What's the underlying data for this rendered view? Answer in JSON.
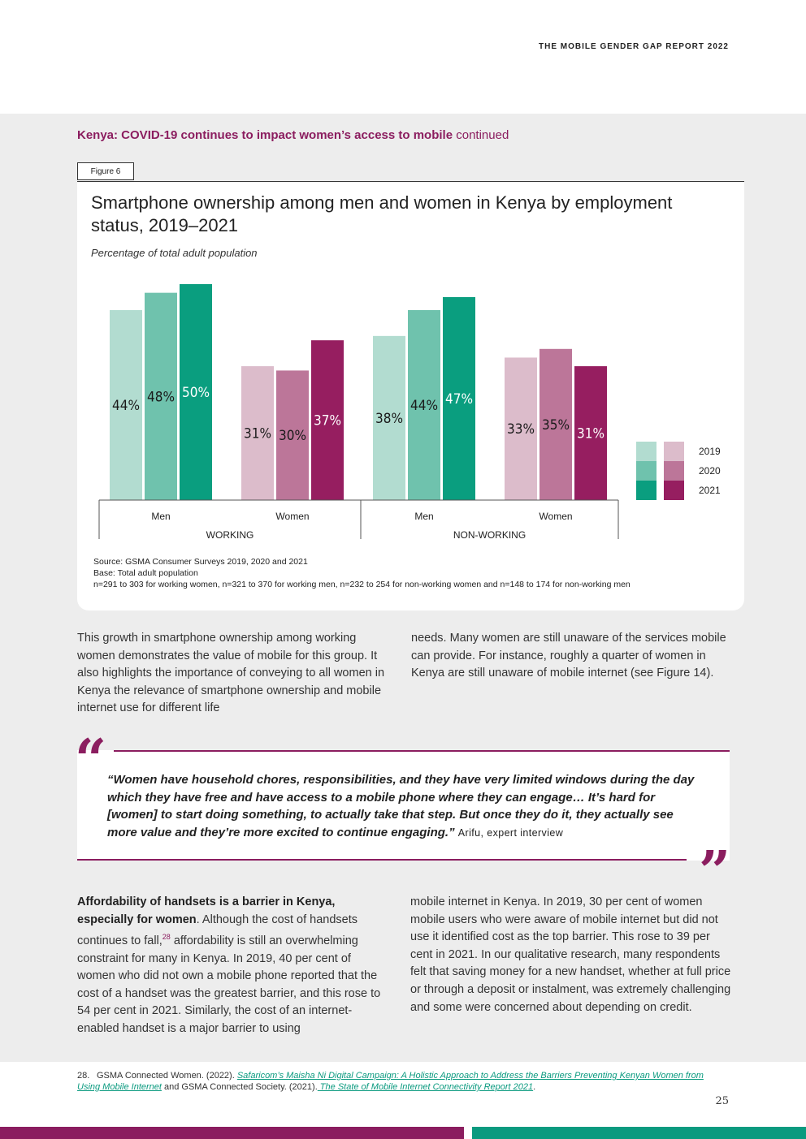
{
  "header": {
    "report_title": "THE MOBILE GENDER GAP REPORT 2022"
  },
  "section": {
    "title": "Kenya: COVID-19 continues to impact women’s access to mobile",
    "continued": "continued"
  },
  "figure": {
    "tab_label": "Figure 6",
    "subtitle": "Percentage of total adult population",
    "source_lines": [
      "Source: GSMA Consumer Surveys 2019, 2020 and 2021",
      "Base: Total adult population",
      "n=291 to 303 for working women, n=321 to 370 for working men, n=232 to 254 for non-working women and n=148 to 174 for non-working men"
    ]
  },
  "colors": {
    "men": [
      "#b2dcd0",
      "#6fc2ad",
      "#0a9e7f"
    ],
    "women": [
      "#dcbccb",
      "#bc7699",
      "#961e60"
    ],
    "brand_purple": "#8b1d5f",
    "brand_green": "#0a9a7f"
  },
  "chart_data": {
    "type": "bar",
    "title": "Smartphone ownership among men and women in Kenya by employment status, 2019–2021",
    "ylabel": "Percentage of total adult population",
    "ylim": [
      0,
      50
    ],
    "legend": [
      "2019",
      "2020",
      "2021"
    ],
    "legend_position": "right",
    "groups": [
      {
        "status": "WORKING",
        "categories": [
          {
            "name": "Men",
            "gender": "men",
            "values": [
              44,
              48,
              50
            ],
            "labels": [
              "44%",
              "48%",
              "50%"
            ]
          },
          {
            "name": "Women",
            "gender": "women",
            "values": [
              31,
              30,
              37
            ],
            "labels": [
              "31%",
              "30%",
              "37%"
            ]
          }
        ]
      },
      {
        "status": "NON-WORKING",
        "categories": [
          {
            "name": "Men",
            "gender": "men",
            "values": [
              38,
              44,
              47
            ],
            "labels": [
              "38%",
              "44%",
              "47%"
            ]
          },
          {
            "name": "Women",
            "gender": "women",
            "values": [
              33,
              35,
              31
            ],
            "labels": [
              "33%",
              "35%",
              "31%"
            ]
          }
        ]
      }
    ]
  },
  "body": {
    "para1_left": "This growth in smartphone ownership among working women demonstrates the value of mobile for this group. It also highlights the importance of conveying to all women in Kenya the relevance of smartphone ownership and mobile internet use for different life",
    "para1_right": "needs. Many women are still unaware of the services mobile can provide. For instance, roughly a quarter of women in Kenya are still unaware of mobile internet (see Figure 14).",
    "para2_left_bold": "Affordability of handsets is a barrier in Kenya, especially for women",
    "para2_left_a": ". Although the cost of handsets continues to fall,",
    "para2_left_sup": "28",
    "para2_left_b": " affordability is still an overwhelming constraint for many in Kenya. In 2019, 40 per cent of women who did not own a mobile phone reported that the cost of a handset was the greatest barrier, and this rose to 54 per cent in 2021. Similarly, the cost of an internet-enabled handset is a major barrier to using",
    "para2_right": "mobile internet in Kenya. In 2019, 30 per cent of women mobile users who were aware of mobile internet but did not use it identified cost as the top barrier. This rose to 39 per cent in 2021. In our qualitative research, many respondents felt that saving money for a new handset, whether at full price or through a deposit or instalment, was extremely challenging and some were concerned about depending on credit."
  },
  "quote": {
    "open_mark": "“",
    "close_mark": "”",
    "text": "“Women have household chores, responsibilities, and they have very limited windows during the day which they have free and have access to a mobile phone where they can engage… It’s hard for [women] to start doing something, to actually take that step. But once they do it, they actually see more value and they’re more excited to continue engaging.”",
    "attribution": "Arifu, expert interview"
  },
  "footnote": {
    "number": "28.",
    "prefix": "GSMA Connected Women. (2022). ",
    "link1": "Safaricom’s Maisha Ni Digital Campaign: A Holistic Approach to Address the Barriers Preventing Kenyan Women from Using Mobile Internet",
    "middle": " and GSMA Connected Society. (2021).",
    "link2": " The State of Mobile Internet Connectivity Report 2021",
    "suffix": "."
  },
  "page": {
    "number": "25"
  }
}
